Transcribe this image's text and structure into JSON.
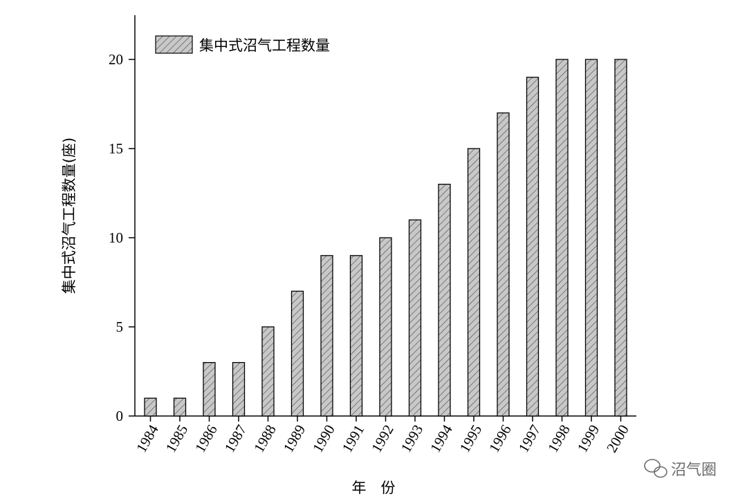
{
  "chart_data": {
    "type": "bar",
    "categories": [
      "1984",
      "1985",
      "1986",
      "1987",
      "1988",
      "1989",
      "1990",
      "1991",
      "1992",
      "1993",
      "1994",
      "1995",
      "1996",
      "1997",
      "1998",
      "1999",
      "2000"
    ],
    "series": [
      {
        "name": "集中式沼气工程数量",
        "values": [
          1,
          1,
          3,
          3,
          5,
          7,
          9,
          9,
          10,
          11,
          13,
          15,
          17,
          19,
          20,
          20,
          20
        ]
      }
    ],
    "xlabel": "年　份",
    "ylabel": "集中式沼气工程数量(座)",
    "ylim": [
      0,
      22.5
    ],
    "yticks": [
      0,
      5,
      10,
      15,
      20
    ],
    "grid": false,
    "legend_position": "top-left",
    "bar_fill": "#c8c8c8",
    "bar_hatch": "diagonal"
  },
  "watermark": {
    "text": "沼气圈",
    "icon": "wechat-icon"
  }
}
